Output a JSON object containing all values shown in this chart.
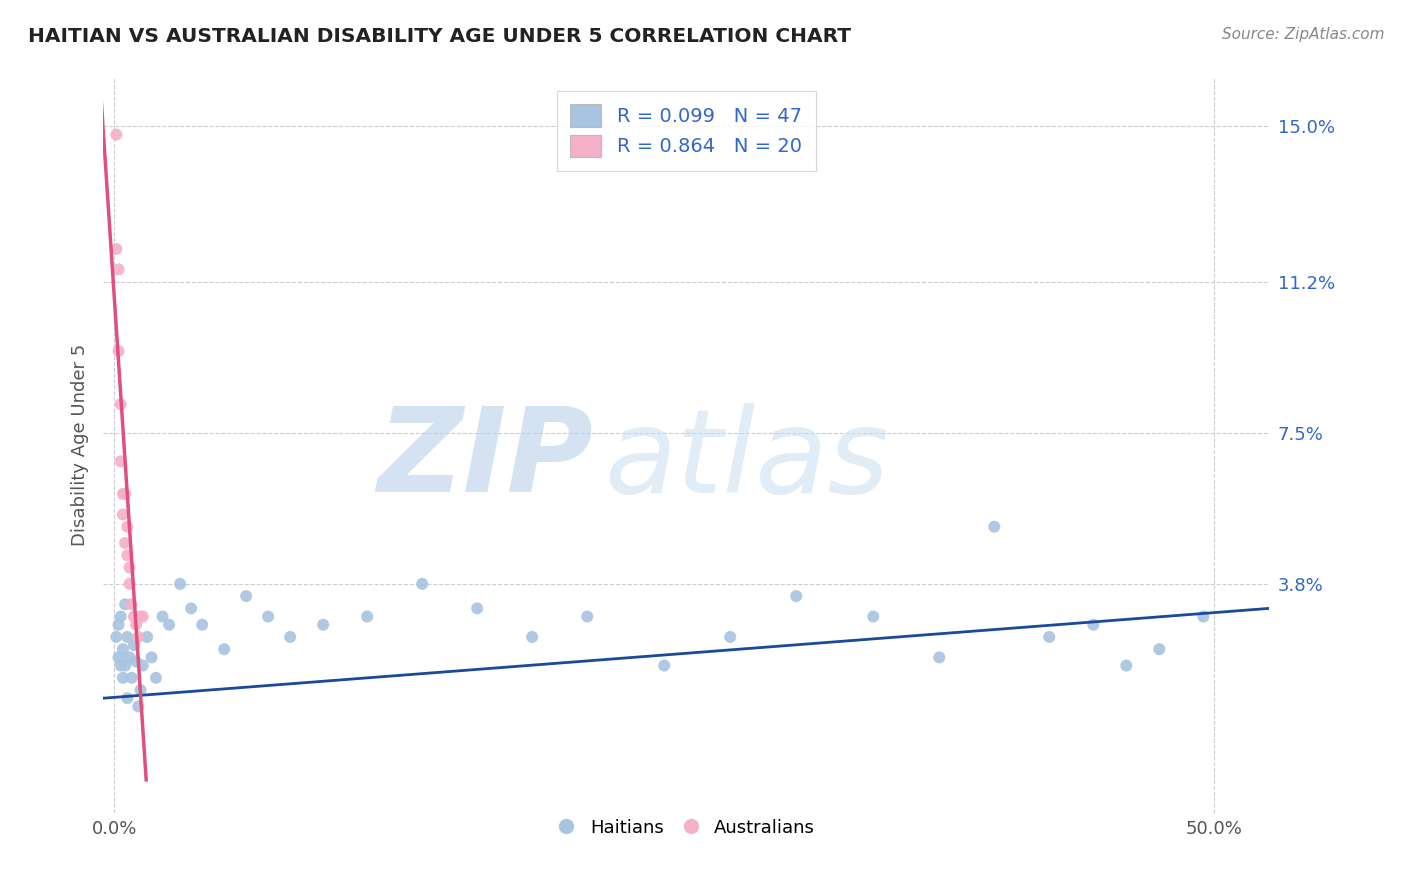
{
  "title": "HAITIAN VS AUSTRALIAN DISABILITY AGE UNDER 5 CORRELATION CHART",
  "source": "Source: ZipAtlas.com",
  "ylabel_values": [
    0.038,
    0.075,
    0.112,
    0.15
  ],
  "xlabel_values": [
    0.0,
    0.5
  ],
  "xmin": -0.005,
  "xmax": 0.525,
  "ymin": -0.018,
  "ymax": 0.162,
  "haitian_x": [
    0.001,
    0.002,
    0.002,
    0.003,
    0.003,
    0.004,
    0.004,
    0.005,
    0.005,
    0.006,
    0.006,
    0.007,
    0.008,
    0.009,
    0.01,
    0.011,
    0.012,
    0.013,
    0.015,
    0.017,
    0.019,
    0.022,
    0.025,
    0.03,
    0.035,
    0.04,
    0.05,
    0.06,
    0.07,
    0.08,
    0.095,
    0.115,
    0.14,
    0.165,
    0.19,
    0.215,
    0.25,
    0.28,
    0.31,
    0.345,
    0.375,
    0.4,
    0.425,
    0.445,
    0.46,
    0.475,
    0.495
  ],
  "haitian_y": [
    0.025,
    0.028,
    0.02,
    0.03,
    0.018,
    0.022,
    0.015,
    0.033,
    0.018,
    0.025,
    0.01,
    0.02,
    0.015,
    0.023,
    0.019,
    0.008,
    0.012,
    0.018,
    0.025,
    0.02,
    0.015,
    0.03,
    0.028,
    0.038,
    0.032,
    0.028,
    0.022,
    0.035,
    0.03,
    0.025,
    0.028,
    0.03,
    0.038,
    0.032,
    0.025,
    0.03,
    0.018,
    0.025,
    0.035,
    0.03,
    0.02,
    0.052,
    0.025,
    0.028,
    0.018,
    0.022,
    0.03
  ],
  "australian_x": [
    0.001,
    0.001,
    0.002,
    0.002,
    0.003,
    0.003,
    0.004,
    0.004,
    0.005,
    0.005,
    0.006,
    0.006,
    0.007,
    0.007,
    0.008,
    0.009,
    0.01,
    0.011,
    0.012,
    0.013
  ],
  "australian_y": [
    0.148,
    0.12,
    0.115,
    0.095,
    0.082,
    0.068,
    0.06,
    0.055,
    0.048,
    0.06,
    0.052,
    0.045,
    0.038,
    0.042,
    0.033,
    0.03,
    0.028,
    0.025,
    0.03,
    0.03
  ],
  "blue_line_x": [
    -0.005,
    0.525
  ],
  "blue_line_y": [
    0.01,
    0.032
  ],
  "pink_line_x0": -0.001,
  "pink_line_x1": 0.014,
  "R_haitian": 0.099,
  "N_haitian": 47,
  "R_australian": 0.864,
  "N_australian": 20,
  "haitian_color": "#a8c4e0",
  "haitian_line_color": "#1a4a9a",
  "australian_color": "#f5b0c8",
  "australian_line_color": "#e0507a",
  "scatter_size": 75,
  "watermark_zip_color": "#b8d0e8",
  "watermark_atlas_color": "#c8ddf0",
  "background_color": "#ffffff",
  "grid_color": "#cccccc",
  "title_color": "#222222",
  "right_axis_color": "#3366cc",
  "bottom_axis_color": "#555555"
}
